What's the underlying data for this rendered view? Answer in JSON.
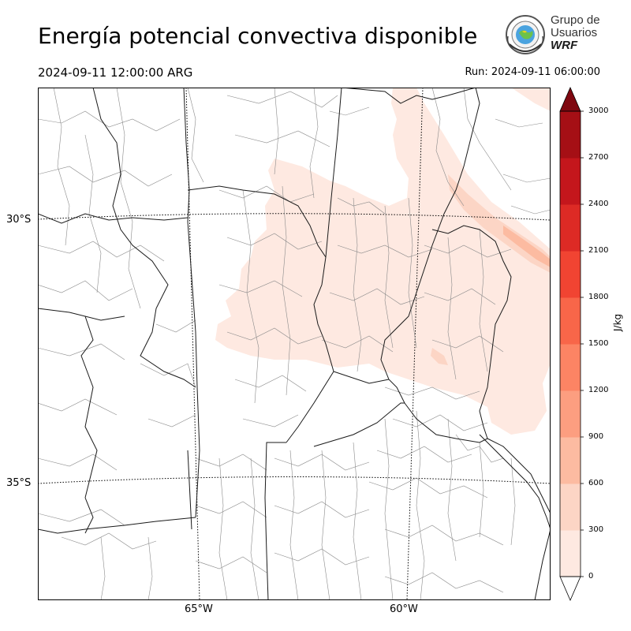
{
  "title": "Energía potencial convectiva disponible",
  "valid_time": "2024-09-11 12:00:00 ARG",
  "run_time": "Run: 2024-09-11 06:00:00",
  "logo": {
    "line1": "Grupo de",
    "line2": "Usuarios",
    "line3": "WRF",
    "icon": "wrf-users-seal-icon"
  },
  "map": {
    "lat_labels": [
      "30°S",
      "35°S"
    ],
    "lon_labels": [
      "65°W",
      "60°W"
    ],
    "graticule": true
  },
  "colorbar": {
    "unit": "J/kg",
    "ticks": [
      "0",
      "300",
      "600",
      "900",
      "1200",
      "1500",
      "1800",
      "2100",
      "2400",
      "2700",
      "3000"
    ],
    "colors": [
      "#fee9e1",
      "#fcd5c5",
      "#fcbba1",
      "#fc9e80",
      "#fc8464",
      "#f86649",
      "#f14432",
      "#dd2a25",
      "#c4161c",
      "#a50f15",
      "#7f0810"
    ],
    "extend": "both"
  }
}
